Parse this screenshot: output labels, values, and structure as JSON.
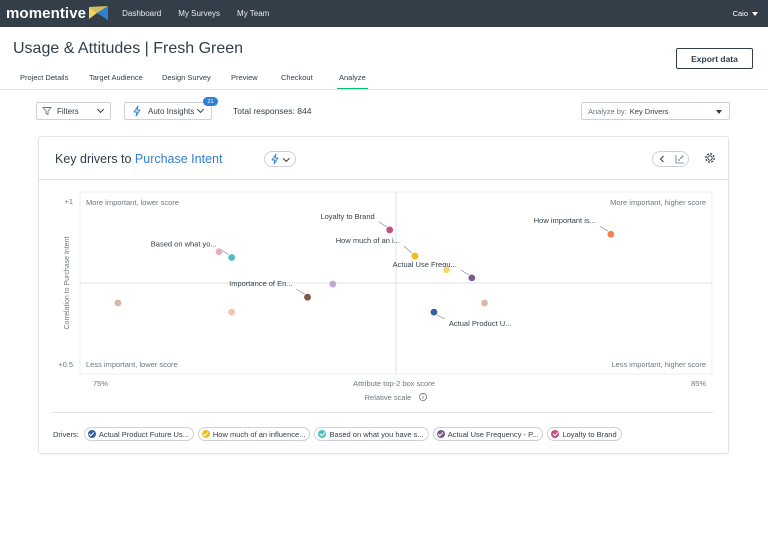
{
  "nav": {
    "brand": "momentive",
    "links": [
      "Dashboard",
      "My Surveys",
      "My Team"
    ],
    "user": "Caio"
  },
  "header": {
    "title": "Usage & Attitudes",
    "separator": "|",
    "subtitle": "Fresh Green",
    "export_label": "Export data"
  },
  "tabs": [
    "Project Details",
    "Target Audience",
    "Design Survey",
    "Preview",
    "Checkout",
    "Analyze"
  ],
  "active_tab": "Analyze",
  "toolbar": {
    "filters_label": "Filters",
    "insights_label": "Auto Insights",
    "insights_count": "21",
    "total_responses": "Total responses: 844",
    "analyze_label": "Analyze by:",
    "analyze_value": "Key Drivers"
  },
  "card": {
    "title_prefix": "Key drivers to",
    "title_accent": "Purchase Intent"
  },
  "colors": {
    "accent": "#2f80d1",
    "active_tab": "#00bf6f",
    "nav_bg": "#333e48"
  },
  "chart_data": {
    "type": "scatter",
    "xlabel": "Attribute top-2 box score",
    "ylabel": "Correlation to Purchase Intent",
    "x_min_label": "75%",
    "x_max_label": "85%",
    "y_max_label": "+1",
    "y_min_label": "+0.5",
    "xlim": [
      75,
      85
    ],
    "ylim": [
      0.5,
      1
    ],
    "scale_note": "Relative scale",
    "quadrants": {
      "top_left": "More important, lower score",
      "top_right": "More important, higher score",
      "bottom_left": "Less important, lower score",
      "bottom_right": "Less important, higher score"
    },
    "points": [
      {
        "label": "Loyalty to Brand",
        "x": 79.9,
        "y": 0.896,
        "color": "#c2517e"
      },
      {
        "label": "How important is...",
        "x": 83.4,
        "y": 0.884,
        "color": "#f0824f"
      },
      {
        "label": "Based on what yo...",
        "x": 77.4,
        "y": 0.82,
        "color": "#4fbfc0"
      },
      {
        "label": "How much of an i...",
        "x": 80.3,
        "y": 0.824,
        "color": "#f0bc1d"
      },
      {
        "label": "Actual Use Frequ...",
        "x": 81.2,
        "y": 0.764,
        "color": "#7a5b8e"
      },
      {
        "label": "Importance of En...",
        "x": 78.6,
        "y": 0.711,
        "color": "#7e5a45"
      },
      {
        "label": "Actual Product U...",
        "x": 80.6,
        "y": 0.67,
        "color": "#35619c"
      },
      {
        "label": "",
        "x": 75.6,
        "y": 0.695,
        "color": "#d4b7a6"
      },
      {
        "label": "",
        "x": 77.4,
        "y": 0.67,
        "color": "#f2c5b3"
      },
      {
        "label": "",
        "x": 79.0,
        "y": 0.747,
        "color": "#c3a6d6"
      },
      {
        "label": "",
        "x": 80.8,
        "y": 0.786,
        "color": "#f7d66b"
      },
      {
        "label": "",
        "x": 81.4,
        "y": 0.695,
        "color": "#ddb9a4"
      },
      {
        "label": "",
        "x": 77.2,
        "y": 0.836,
        "color": "#e6aec3"
      }
    ]
  },
  "legend": {
    "label": "Drivers:",
    "items": [
      {
        "label": "Actual Product Future Us...",
        "color": "#35619c"
      },
      {
        "label": "How much of an influence...",
        "color": "#f0bc1d"
      },
      {
        "label": "Based on what you have s...",
        "color": "#4fbfc0"
      },
      {
        "label": "Actual Use Frequency - P...",
        "color": "#7a5b8e"
      },
      {
        "label": "Loyalty to Brand",
        "color": "#c2517e"
      }
    ]
  }
}
